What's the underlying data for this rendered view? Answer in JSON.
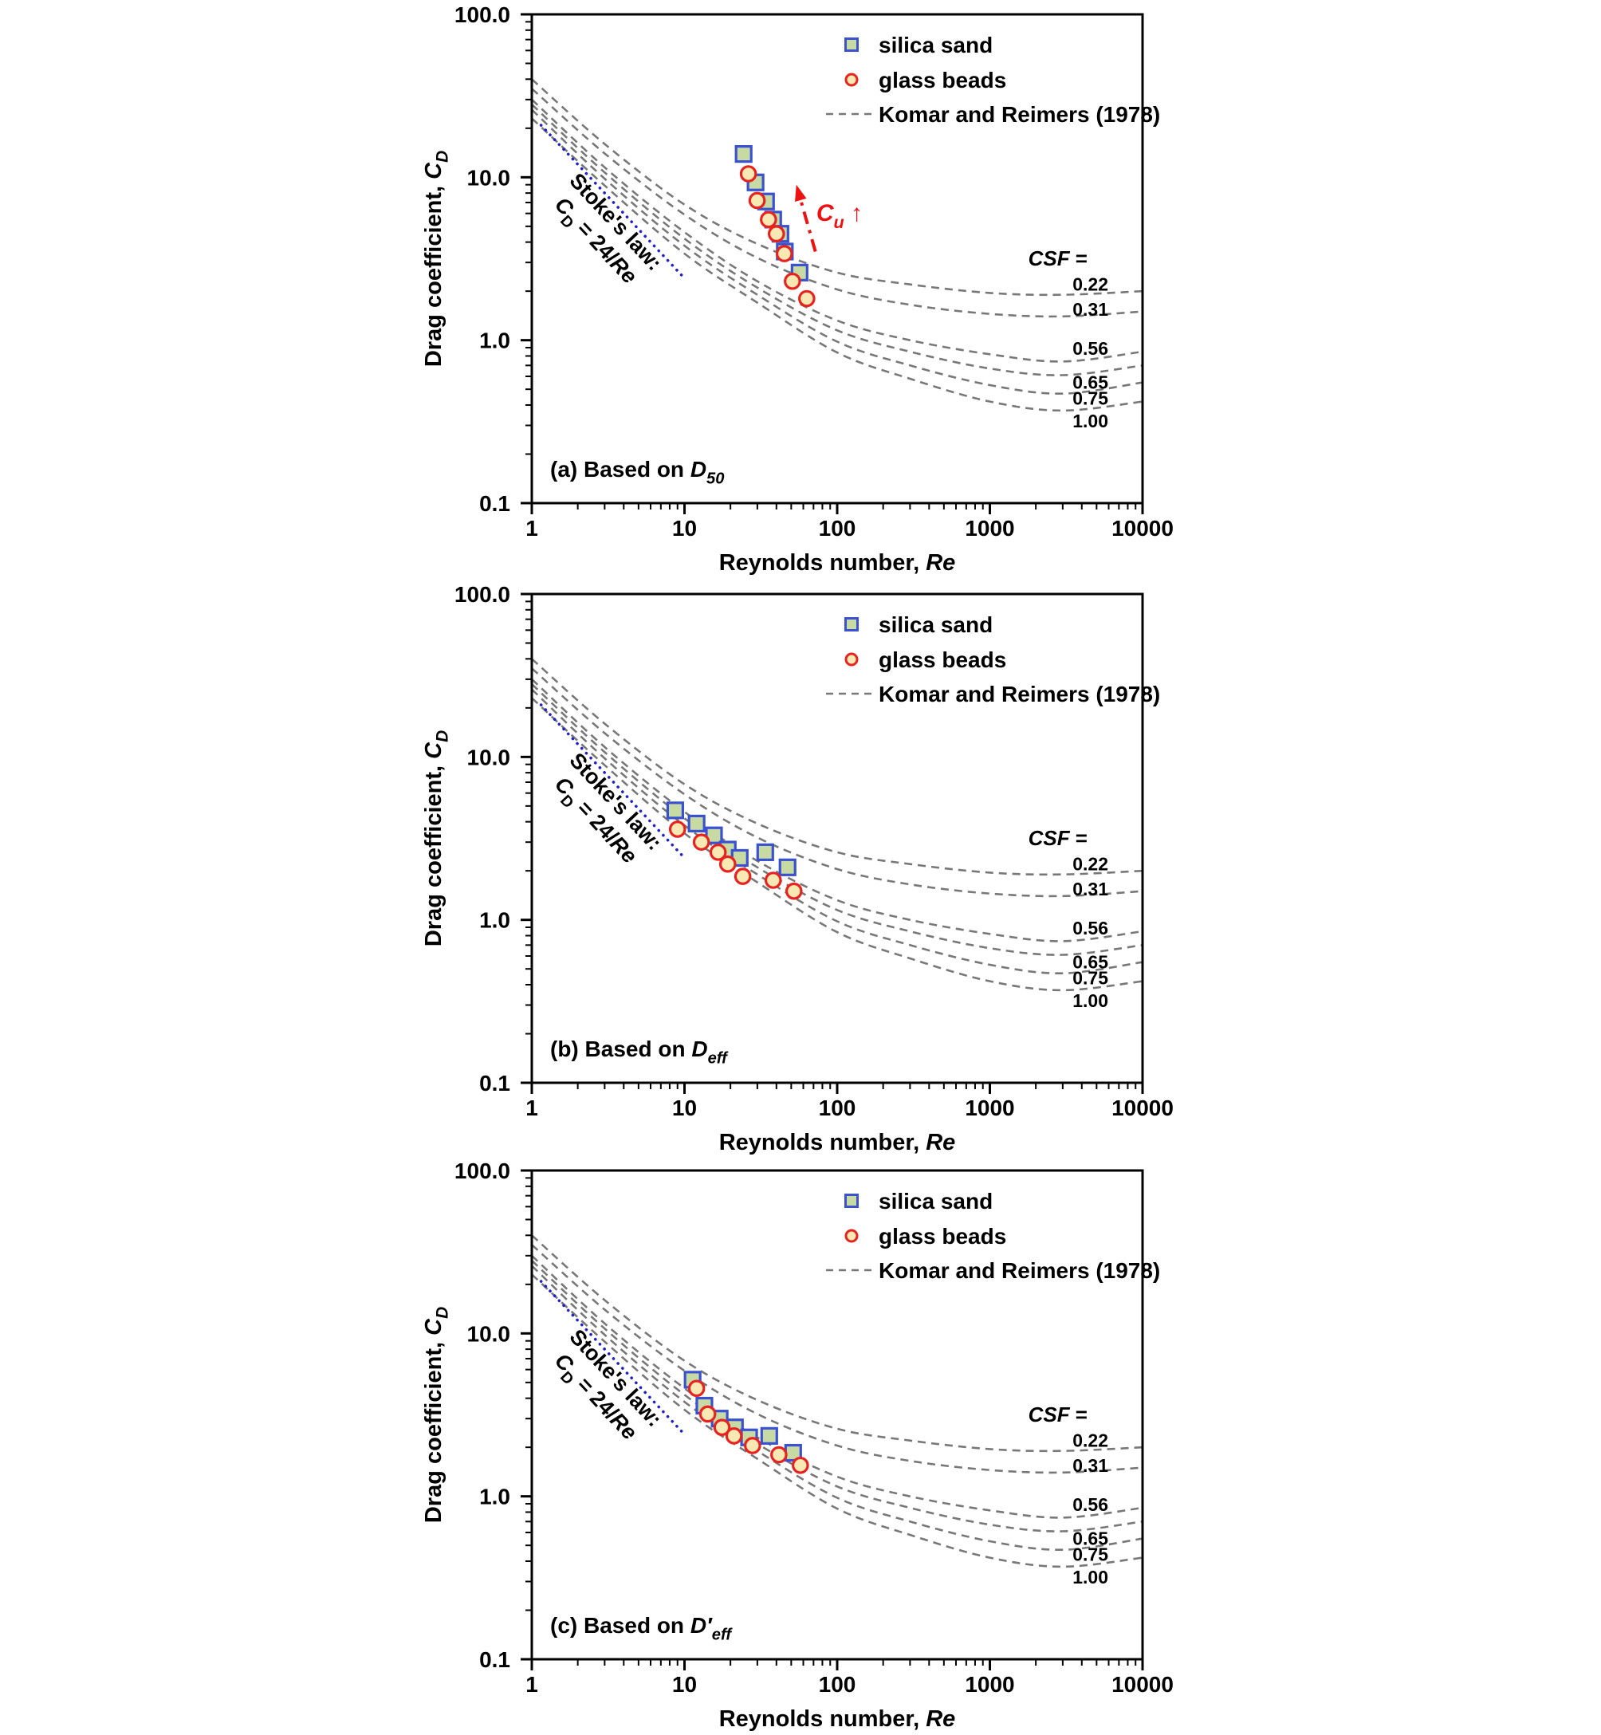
{
  "style": {
    "background": "#ffffff",
    "text": "#000000",
    "silica_fill": "#c8daa4",
    "silica_stroke": "#3a52d0",
    "glass_fill": "#f8e9b4",
    "glass_stroke": "#e8231f",
    "curve": "#787878",
    "stokes": "#2121cc",
    "annotation": "#ee1111"
  },
  "chart_data": {
    "type": "scatter",
    "scale": "log-log",
    "grid": false,
    "x_axis": {
      "label_main": "Reynolds number, ",
      "label_italic": "Re",
      "range": [
        1,
        10000
      ],
      "ticks": [
        "1",
        "10",
        "100",
        "1000",
        "10000"
      ]
    },
    "y_axis": {
      "label_main": "Drag coefficient, ",
      "label_italic": "C",
      "label_sub": "D",
      "range": [
        0.1,
        100
      ],
      "ticks": [
        "0.1",
        "1.0",
        "10.0",
        "100.0"
      ]
    },
    "legend": {
      "items": [
        {
          "label": "silica sand",
          "marker": "square"
        },
        {
          "label": "glass beads",
          "marker": "circle"
        },
        {
          "label": "Komar and Reimers (1978)",
          "marker": "dashed-line"
        }
      ]
    },
    "stokes_law": {
      "text_line1": "Stoke's law:",
      "eq_pre": "C",
      "eq_sub": "D",
      "eq_mid": " = 24/",
      "eq_italic": "Re",
      "re_range": [
        1.15,
        9.7
      ],
      "anchor": [
        3.0,
        4.6
      ],
      "angle_deg": 47
    },
    "csf_header": {
      "italic": "CSF",
      "rest": " =",
      "anchor_cd": 2.87
    },
    "reference_curves": {
      "source": "Komar and Reimers (1978)",
      "re_samples": [
        1,
        3,
        10,
        30,
        100,
        300,
        1000,
        3000,
        10000
      ],
      "curves": [
        {
          "csf": "0.22",
          "cd": [
            40,
            16,
            6.8,
            3.9,
            2.6,
            2.2,
            1.95,
            1.9,
            2.0
          ],
          "label_cd": 2.2
        },
        {
          "csf": "0.31",
          "cd": [
            35,
            14,
            5.9,
            3.2,
            2.05,
            1.65,
            1.45,
            1.4,
            1.5
          ],
          "label_cd": 1.55
        },
        {
          "csf": "0.56",
          "cd": [
            30,
            11.5,
            4.6,
            2.3,
            1.32,
            1.0,
            0.82,
            0.74,
            0.85
          ],
          "label_cd": 0.89
        },
        {
          "csf": "0.65",
          "cd": [
            28,
            10.7,
            4.2,
            2.1,
            1.15,
            0.85,
            0.67,
            0.61,
            0.7
          ],
          "label_cd": 0.55
        },
        {
          "csf": "0.75",
          "cd": [
            26,
            9.8,
            3.8,
            1.9,
            0.98,
            0.7,
            0.53,
            0.47,
            0.55
          ],
          "label_cd": 0.44
        },
        {
          "csf": "1.00",
          "cd": [
            23,
            8.9,
            3.4,
            1.7,
            0.84,
            0.58,
            0.42,
            0.37,
            0.42
          ],
          "label_cd": 0.32
        }
      ]
    },
    "panels": [
      {
        "id": "a",
        "caption_prefix": "(a)",
        "caption_text": "Based on",
        "caption_symbol": "D",
        "caption_sub": "50",
        "caption_prime": false,
        "series": {
          "silica_sand": [
            [
              24.4,
              13.9
            ],
            [
              29.2,
              9.3
            ],
            [
              34.2,
              7.1
            ],
            [
              38.1,
              5.5
            ],
            [
              42.5,
              4.5
            ],
            [
              45.4,
              3.5
            ],
            [
              56.7,
              2.6
            ]
          ],
          "glass_beads": [
            [
              26.2,
              10.5
            ],
            [
              29.9,
              7.2
            ],
            [
              35.5,
              5.5
            ],
            [
              40,
              4.5
            ],
            [
              45.1,
              3.4
            ],
            [
              50.9,
              2.3
            ],
            [
              63.2,
              1.8
            ]
          ]
        },
        "annotation": {
          "label_main": "C",
          "label_sub": "u",
          "arrow_char": "↑",
          "text_anchor": [
            73,
            5.4
          ],
          "arrow_from": [
            72,
            3.5
          ],
          "arrow_to": [
            54,
            9.0
          ]
        }
      },
      {
        "id": "b",
        "caption_prefix": "(b)",
        "caption_text": "Based on",
        "caption_symbol": "D",
        "caption_sub": "eff",
        "caption_prime": false,
        "series": {
          "silica_sand": [
            [
              8.7,
              4.7
            ],
            [
              12,
              3.9
            ],
            [
              15.6,
              3.3
            ],
            [
              19.2,
              2.7
            ],
            [
              23,
              2.4
            ],
            [
              33.8,
              2.6
            ],
            [
              47.3,
              2.1
            ]
          ],
          "glass_beads": [
            [
              9,
              3.6
            ],
            [
              12.9,
              3.0
            ],
            [
              16.6,
              2.6
            ],
            [
              19.2,
              2.2
            ],
            [
              24.1,
              1.85
            ],
            [
              38.1,
              1.75
            ],
            [
              52.1,
              1.5
            ]
          ]
        },
        "annotation": null
      },
      {
        "id": "c",
        "caption_prefix": "(c)",
        "caption_text": "Based on",
        "caption_symbol": "D",
        "caption_sub": "eff",
        "caption_prime": true,
        "series": {
          "silica_sand": [
            [
              11.3,
              5.2
            ],
            [
              13.5,
              3.6
            ],
            [
              17,
              3.0
            ],
            [
              21.4,
              2.65
            ],
            [
              26.5,
              2.3
            ],
            [
              35.9,
              2.35
            ],
            [
              51.5,
              1.85
            ]
          ],
          "glass_beads": [
            [
              12,
              4.6
            ],
            [
              14.2,
              3.2
            ],
            [
              17.6,
              2.65
            ],
            [
              21.1,
              2.35
            ],
            [
              27.9,
              2.05
            ],
            [
              41.5,
              1.8
            ],
            [
              57.4,
              1.55
            ]
          ]
        }
      }
    ]
  }
}
